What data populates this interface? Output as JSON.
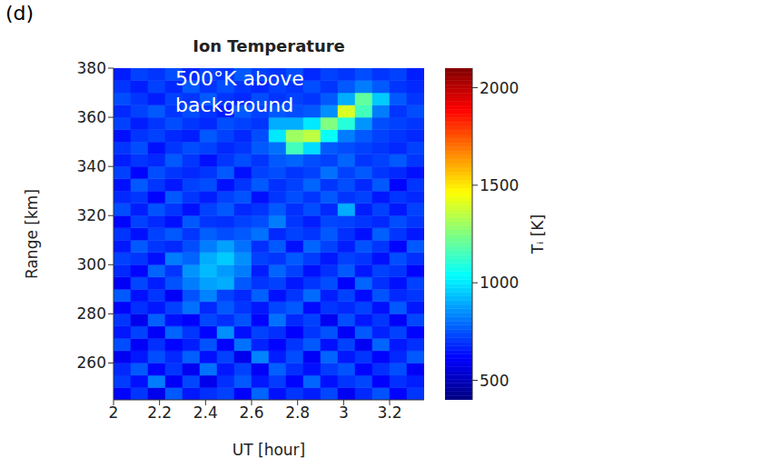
{
  "chart_data": {
    "type": "heatmap",
    "panel": "(d)",
    "title": "Ion Temperature",
    "annotation": "500°K above background",
    "x_label": "UT [hour]",
    "y_label": "Range [km]",
    "colorbar_label": "Tᵢ [K]",
    "xlim": [
      2,
      3.35
    ],
    "xticks": [
      2,
      2.2,
      2.4,
      2.6,
      2.8,
      3,
      3.2
    ],
    "ylim": [
      245,
      380
    ],
    "yticks": [
      260,
      280,
      300,
      320,
      340,
      360,
      380
    ],
    "x_bins": [
      2,
      2.075,
      2.15,
      2.225,
      2.3,
      2.375,
      2.45,
      2.525,
      2.6,
      2.675,
      2.75,
      2.825,
      2.9,
      2.975,
      3.05,
      3.125,
      3.2,
      3.275,
      3.35
    ],
    "y_bins": [
      245,
      250,
      255,
      260,
      265,
      270,
      275,
      280,
      285,
      290,
      295,
      300,
      305,
      310,
      315,
      320,
      325,
      330,
      335,
      340,
      345,
      350,
      355,
      360,
      365,
      370,
      375,
      380
    ],
    "values": [
      [
        620,
        700,
        580,
        760,
        650,
        690,
        720,
        610,
        780,
        640,
        700,
        660,
        730,
        590,
        680,
        750,
        620,
        700
      ],
      [
        710,
        640,
        820,
        600,
        730,
        580,
        690,
        760,
        650,
        710,
        620,
        780,
        640,
        700,
        730,
        610,
        690,
        660
      ],
      [
        680,
        760,
        620,
        700,
        590,
        800,
        650,
        720,
        600,
        770,
        690,
        640,
        710,
        750,
        620,
        690,
        740,
        600
      ],
      [
        590,
        650,
        740,
        680,
        770,
        640,
        720,
        580,
        830,
        660,
        740,
        600,
        780,
        650,
        700,
        620,
        680,
        760
      ],
      [
        740,
        600,
        690,
        620,
        660,
        750,
        610,
        800,
        670,
        620,
        700,
        760,
        640,
        720,
        590,
        780,
        650,
        690
      ],
      [
        650,
        720,
        600,
        780,
        700,
        620,
        850,
        640,
        720,
        690,
        610,
        700,
        750,
        600,
        760,
        670,
        720,
        620
      ],
      [
        700,
        580,
        770,
        640,
        610,
        730,
        690,
        750,
        620,
        800,
        680,
        720,
        590,
        740,
        650,
        700,
        600,
        730
      ],
      [
        620,
        690,
        650,
        720,
        800,
        680,
        760,
        700,
        650,
        730,
        760,
        630,
        700,
        680,
        720,
        640,
        760,
        650
      ],
      [
        760,
        640,
        700,
        600,
        750,
        830,
        720,
        680,
        770,
        640,
        700,
        790,
        660,
        720,
        630,
        750,
        680,
        700
      ],
      [
        600,
        730,
        660,
        750,
        820,
        880,
        900,
        760,
        700,
        720,
        650,
        700,
        740,
        610,
        780,
        690,
        640,
        720
      ],
      [
        680,
        620,
        780,
        700,
        860,
        920,
        870,
        820,
        660,
        780,
        720,
        640,
        690,
        760,
        650,
        720,
        700,
        620
      ],
      [
        720,
        700,
        640,
        820,
        780,
        900,
        950,
        850,
        720,
        700,
        760,
        710,
        650,
        720,
        700,
        640,
        740,
        690
      ],
      [
        650,
        760,
        700,
        680,
        740,
        820,
        880,
        800,
        690,
        760,
        640,
        780,
        720,
        660,
        750,
        700,
        620,
        760
      ],
      [
        700,
        640,
        720,
        760,
        700,
        770,
        740,
        760,
        800,
        680,
        720,
        700,
        760,
        690,
        640,
        770,
        700,
        650
      ],
      [
        620,
        720,
        680,
        640,
        760,
        700,
        690,
        720,
        740,
        820,
        700,
        660,
        730,
        720,
        700,
        680,
        740,
        700
      ],
      [
        740,
        660,
        750,
        700,
        640,
        720,
        760,
        680,
        700,
        760,
        690,
        740,
        680,
        900,
        660,
        720,
        650,
        720
      ],
      [
        680,
        700,
        620,
        760,
        700,
        660,
        720,
        750,
        640,
        700,
        740,
        700,
        760,
        700,
        720,
        650,
        700,
        680
      ],
      [
        640,
        760,
        700,
        650,
        720,
        740,
        640,
        700,
        760,
        690,
        720,
        780,
        700,
        740,
        680,
        760,
        620,
        700
      ],
      [
        720,
        620,
        740,
        700,
        680,
        700,
        760,
        640,
        720,
        740,
        700,
        720,
        800,
        720,
        760,
        700,
        680,
        640
      ],
      [
        660,
        700,
        680,
        760,
        700,
        640,
        700,
        740,
        700,
        760,
        780,
        740,
        720,
        780,
        700,
        720,
        760,
        700
      ],
      [
        700,
        740,
        640,
        700,
        740,
        720,
        680,
        700,
        760,
        800,
        1150,
        980,
        760,
        740,
        720,
        700,
        680,
        720
      ],
      [
        640,
        700,
        720,
        680,
        660,
        760,
        720,
        680,
        740,
        1000,
        1300,
        1350,
        1050,
        820,
        760,
        720,
        700,
        680
      ],
      [
        720,
        660,
        700,
        740,
        700,
        680,
        740,
        720,
        700,
        900,
        900,
        1000,
        1250,
        1100,
        860,
        740,
        720,
        700
      ],
      [
        680,
        720,
        760,
        700,
        740,
        700,
        660,
        760,
        720,
        760,
        740,
        760,
        850,
        1400,
        1150,
        820,
        700,
        740
      ],
      [
        740,
        700,
        660,
        720,
        700,
        760,
        700,
        680,
        740,
        700,
        720,
        700,
        760,
        900,
        1200,
        950,
        760,
        700
      ],
      [
        700,
        660,
        720,
        680,
        760,
        700,
        740,
        700,
        680,
        720,
        700,
        740,
        700,
        760,
        820,
        760,
        700,
        680
      ],
      [
        660,
        720,
        700,
        740,
        680,
        720,
        700,
        760,
        720,
        700,
        740,
        680,
        720,
        700,
        740,
        700,
        720,
        660
      ]
    ],
    "colorbar_range": [
      400,
      2100
    ],
    "colorbar_ticks": [
      500,
      1000,
      1500,
      2000
    ]
  }
}
